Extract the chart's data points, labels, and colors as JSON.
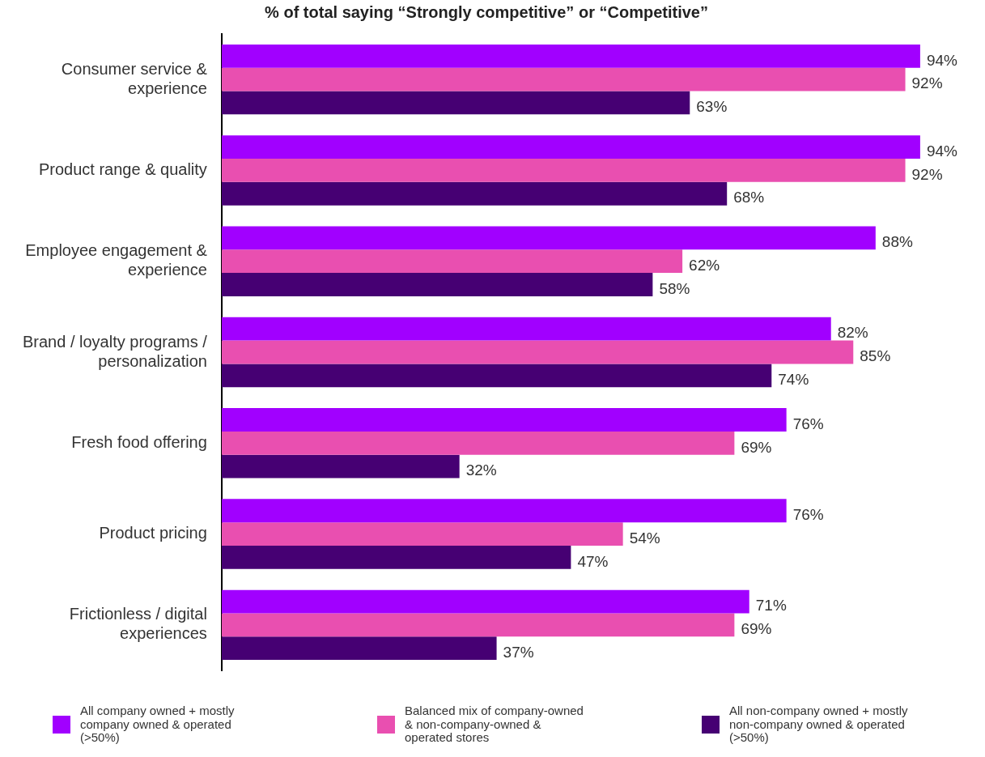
{
  "chart_data": {
    "type": "bar",
    "orientation": "horizontal",
    "title": "% of total saying “Strongly competitive” or “Competitive”",
    "categories": [
      "Consumer service & experience",
      "Product range & quality",
      "Employee engagement & experience",
      "Brand / loyalty programs / personalization",
      "Fresh food offering",
      "Product pricing",
      "Frictionless / digital experiences"
    ],
    "series": [
      {
        "name": "All company owned + mostly company owned & operated (>50%)",
        "color": "#a100ff",
        "values": [
          94,
          94,
          88,
          82,
          76,
          76,
          71
        ],
        "value_labels": [
          "94%",
          "94%",
          "88%",
          "82%",
          "76%",
          "76%",
          "71%"
        ]
      },
      {
        "name": "Balanced mix of company-owned & non-company-owned & operated stores",
        "color": "#e94fb0",
        "values": [
          92,
          92,
          62,
          85,
          69,
          54,
          69
        ],
        "value_labels": [
          "92%",
          "92%",
          "62%",
          "85%",
          "69%",
          "54%",
          "69%"
        ]
      },
      {
        "name": "All non-company owned + mostly non-company owned & operated (>50%)",
        "color": "#460073",
        "values": [
          63,
          68,
          58,
          74,
          32,
          47,
          37
        ],
        "value_labels": [
          "63%",
          "68%",
          "58%",
          "74%",
          "32%",
          "47%",
          "37%"
        ]
      }
    ],
    "tick_labels": "y",
    "legend": "bottom"
  }
}
